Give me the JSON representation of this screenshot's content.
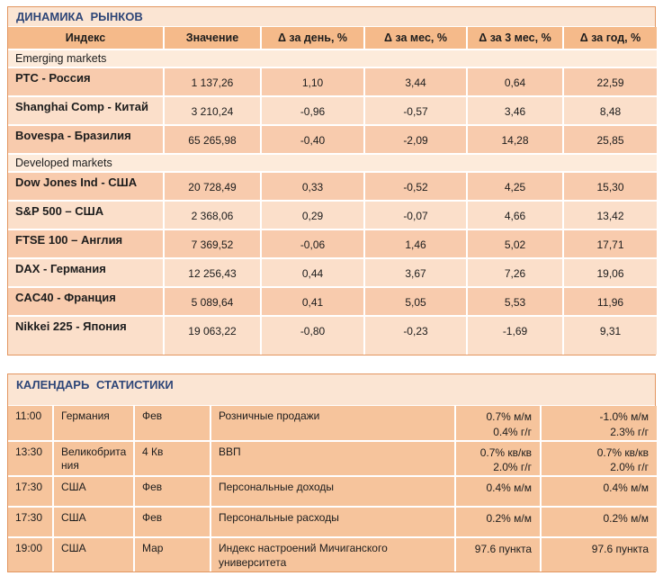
{
  "colors": {
    "border-color": "#e2955f",
    "title-bg": "#fbe5d3",
    "title-fg": "#2e4678",
    "header-bg": "#f5ba8a",
    "section-bg": "#fdebdb",
    "row-dark": "#f8cbad",
    "row-light": "#fbdfca",
    "cal-row": "#f6c49c",
    "divider": "#ffffff"
  },
  "market_dynamics": {
    "title": "ДИНАМИКА РЫНКОВ",
    "columns": [
      "Индекс",
      "Значение",
      "Δ за день, %",
      "Δ за мес, %",
      "Δ за 3 мес, %",
      "Δ за год, %"
    ],
    "sections": [
      {
        "label": "Emerging markets",
        "rows": [
          [
            "РТС - Россия",
            "1 137,26",
            "1,10",
            "3,44",
            "0,64",
            "22,59"
          ],
          [
            "Shanghai Comp - Китай",
            "3 210,24",
            "-0,96",
            "-0,57",
            "3,46",
            "8,48"
          ],
          [
            "Bovespa - Бразилия",
            "65 265,98",
            "-0,40",
            "-2,09",
            "14,28",
            "25,85"
          ]
        ]
      },
      {
        "label": "Developed markets",
        "rows": [
          [
            "Dow Jones Ind - США",
            "20 728,49",
            "0,33",
            "-0,52",
            "4,25",
            "15,30"
          ],
          [
            "S&P 500 – США",
            "2 368,06",
            "0,29",
            "-0,07",
            "4,66",
            "13,42"
          ],
          [
            "FTSE 100 – Англия",
            "7 369,52",
            "-0,06",
            "1,46",
            "5,02",
            "17,71"
          ],
          [
            "DAX - Германия",
            "12 256,43",
            "0,44",
            "3,67",
            "7,26",
            "19,06"
          ],
          [
            "CAC40 - Франция",
            "5 089,64",
            "0,41",
            "5,05",
            "5,53",
            "11,96"
          ],
          [
            "Nikkei 225 - Япония",
            "19 063,22",
            "-0,80",
            "-0,23",
            "-1,69",
            "9,31"
          ]
        ]
      }
    ]
  },
  "statistics_calendar": {
    "title": "КАЛЕНДАРЬ СТАТИСТИКИ",
    "rows": [
      [
        "11:00",
        "Германия",
        "Фев",
        "Розничные продажи",
        "0.7% м/м\n0.4% г/г",
        "-1.0% м/м\n2.3% г/г"
      ],
      [
        "13:30",
        "Великобритания",
        "4 Кв",
        "ВВП",
        "0.7% кв/кв\n2.0% г/г",
        "0.7% кв/кв\n2.0% г/г"
      ],
      [
        "17:30",
        "США",
        "Фев",
        "Персональные доходы",
        "0.4% м/м",
        "0.4% м/м"
      ],
      [
        "17:30",
        "США",
        "Фев",
        "Персональные расходы",
        "0.2% м/м",
        "0.2% м/м"
      ],
      [
        "19:00",
        "США",
        "Мар",
        "Индекс настроений Мичиганского университета",
        "97.6 пункта",
        "97.6 пункта"
      ]
    ]
  }
}
